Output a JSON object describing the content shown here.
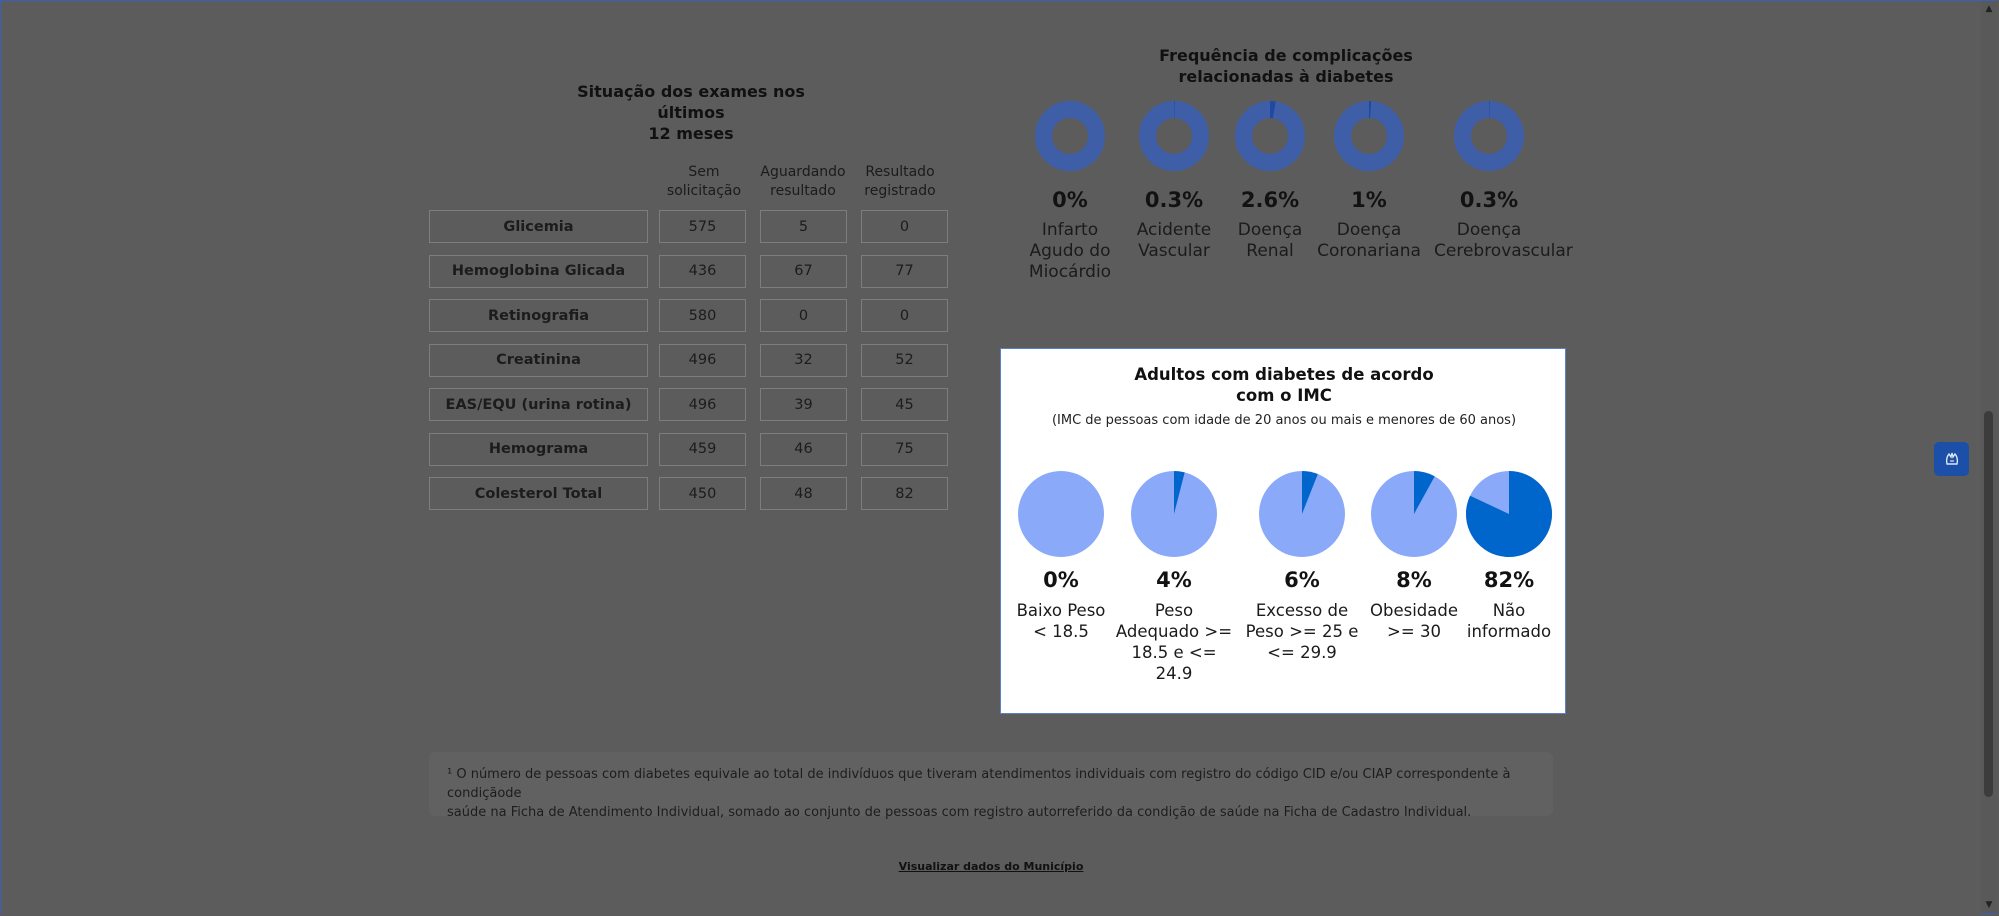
{
  "exams": {
    "title_line1": "Situação dos exames nos últimos",
    "title_line2": "12 meses",
    "columns": [
      {
        "line1": "Sem",
        "line2": "solicitação"
      },
      {
        "line1": "Aguardando",
        "line2": "resultado"
      },
      {
        "line1": "Resultado",
        "line2": "registrado"
      }
    ],
    "rows": [
      {
        "label": "Glicemia",
        "values": [
          "575",
          "5",
          "0"
        ]
      },
      {
        "label": "Hemoglobina Glicada",
        "values": [
          "436",
          "67",
          "77"
        ]
      },
      {
        "label": "Retinografia",
        "values": [
          "580",
          "0",
          "0"
        ]
      },
      {
        "label": "Creatinina",
        "values": [
          "496",
          "32",
          "52"
        ]
      },
      {
        "label": "EAS/EQU (urina rotina)",
        "values": [
          "496",
          "39",
          "45"
        ]
      },
      {
        "label": "Hemograma",
        "values": [
          "459",
          "46",
          "75"
        ]
      },
      {
        "label": "Colesterol Total",
        "values": [
          "450",
          "48",
          "82"
        ]
      }
    ]
  },
  "complications": {
    "title_line1": "Frequência de complicações",
    "title_line2": "relacionadas à diabetes",
    "ring_color": "#3f5ea8",
    "fill_color": "#1f4aa0",
    "items": [
      {
        "pct": "0%",
        "value": 0,
        "label1": "Infarto",
        "label2": "Agudo do",
        "label3": "Miocárdio"
      },
      {
        "pct": "0.3%",
        "value": 0.3,
        "label1": "Acidente",
        "label2": "Vascular",
        "label3": ""
      },
      {
        "pct": "2.6%",
        "value": 2.6,
        "label1": "Doença",
        "label2": "Renal",
        "label3": ""
      },
      {
        "pct": "1%",
        "value": 1,
        "label1": "Doença",
        "label2": "Coronariana",
        "label3": ""
      },
      {
        "pct": "0.3%",
        "value": 0.3,
        "label1": "Doença",
        "label2": "Cerebrovascular",
        "label3": ""
      }
    ]
  },
  "imc": {
    "title_line1": "Adultos com diabetes de acordo",
    "title_line2": "com o IMC",
    "subtitle": "(IMC de pessoas com idade de 20 anos ou mais e menores de 60 anos)",
    "base_color": "#8aaaf9",
    "fill_color": "#0066cc",
    "items": [
      {
        "pct": "0%",
        "value": 0,
        "label1": "Baixo Peso",
        "label2": "< 18.5",
        "label3": ""
      },
      {
        "pct": "4%",
        "value": 4,
        "label1": "Peso",
        "label2": "Adequado >=",
        "label3": "18.5 e <= 24.9"
      },
      {
        "pct": "6%",
        "value": 6,
        "label1": "Excesso de",
        "label2": "Peso >= 25 e",
        "label3": "<= 29.9"
      },
      {
        "pct": "8%",
        "value": 8,
        "label1": "Obesidade",
        "label2": ">= 30",
        "label3": ""
      },
      {
        "pct": "82%",
        "value": 82,
        "label1": "Não",
        "label2": "informado",
        "label3": ""
      }
    ]
  },
  "footnote": {
    "line1": "¹ O número de pessoas com diabetes equivale ao total de indivíduos que tiveram atendimentos individuais com registro do código CID e/ou CIAP correspondente à condiçãode",
    "line2": "saúde na Ficha de Atendimento Individual, somado ao conjunto de pessoas com registro autorreferido da condição de saúde na Ficha de Cadastro Individual."
  },
  "link": {
    "label": "Visualizar dados do Município"
  },
  "side_button": {
    "icon": "accessibility-hands-icon"
  }
}
